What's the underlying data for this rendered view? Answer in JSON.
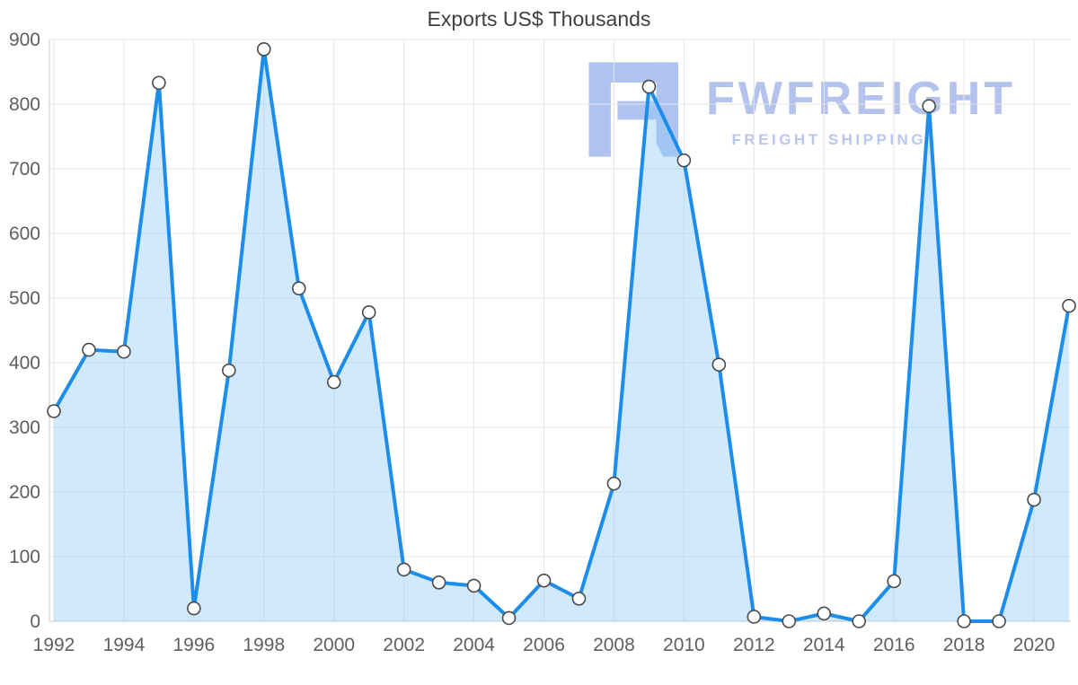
{
  "chart_data": {
    "type": "area",
    "title": "Exports US$ Thousands",
    "x": [
      1992,
      1993,
      1994,
      1995,
      1996,
      1997,
      1998,
      1999,
      2000,
      2001,
      2002,
      2003,
      2004,
      2005,
      2006,
      2007,
      2008,
      2009,
      2010,
      2011,
      2012,
      2013,
      2014,
      2015,
      2016,
      2017,
      2018,
      2019,
      2020,
      2021
    ],
    "values": [
      325,
      420,
      417,
      833,
      20,
      388,
      885,
      515,
      370,
      478,
      80,
      60,
      55,
      5,
      63,
      35,
      213,
      827,
      713,
      397,
      7,
      0,
      12,
      0,
      62,
      797,
      0,
      0,
      188,
      488
    ],
    "xlabel": "",
    "ylabel": "",
    "ylim": [
      0,
      900
    ],
    "y_ticks": [
      0,
      100,
      200,
      300,
      400,
      500,
      600,
      700,
      800,
      900
    ],
    "x_ticks": [
      1992,
      1994,
      1996,
      1998,
      2000,
      2002,
      2004,
      2006,
      2008,
      2010,
      2012,
      2014,
      2016,
      2018,
      2020
    ],
    "grid": true,
    "legend": "none",
    "line_color": "#1d8deb",
    "area_fill_color": "#d9ecfd",
    "marker_fill": "#ffffff",
    "marker_stroke": "#4a4a4a",
    "gridline_color": "#e6e6e6",
    "axis_color": "#c8c8c8",
    "tick_label_color": "#5f5f5f"
  },
  "watermark": {
    "brand": "FWFREIGHT",
    "tagline": "FREIGHT SHIPPING",
    "color": "#b3c3ee"
  }
}
